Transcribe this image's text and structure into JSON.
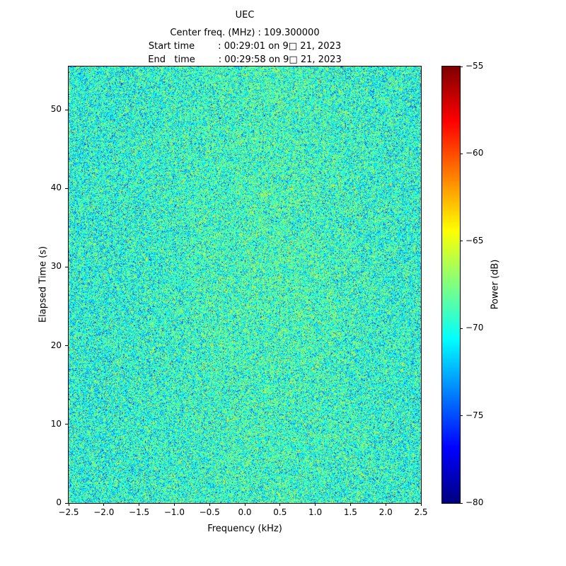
{
  "figure": {
    "title": "UEC",
    "subtitle_lines": [
      "Center freq. (MHz) : 109.300000",
      "Start time        : 00:29:01 on 9□ 21, 2023",
      "End   time        : 00:29:58 on 9□ 21, 2023"
    ]
  },
  "axes": {
    "xlabel": "Frequency (kHz)",
    "ylabel": "Elapsed Time (s)",
    "xtick_labels": [
      "−2.5",
      "−2.0",
      "−1.5",
      "−1.0",
      "−0.5",
      "0.0",
      "0.5",
      "1.0",
      "1.5",
      "2.0",
      "2.5"
    ],
    "ytick_labels": [
      "0",
      "10",
      "20",
      "30",
      "40",
      "50"
    ]
  },
  "colorbar": {
    "label": "Power (dB)",
    "tick_labels": [
      "−55",
      "−60",
      "−65",
      "−70",
      "−75",
      "−80"
    ]
  },
  "chart_data": {
    "type": "heatmap",
    "title": "UEC",
    "subtitle": {
      "center_freq_mhz": "109.300000",
      "start_time": "00:29:01 on 9□ 21, 2023",
      "end_time": "00:29:58 on 9□ 21, 2023"
    },
    "xlabel": "Frequency (kHz)",
    "ylabel": "Elapsed Time (s)",
    "x_range": [
      -2.5,
      2.5
    ],
    "y_range": [
      0,
      55.5
    ],
    "xticks": [
      -2.5,
      -2.0,
      -1.5,
      -1.0,
      -0.5,
      0.0,
      0.5,
      1.0,
      1.5,
      2.0,
      2.5
    ],
    "yticks": [
      0,
      10,
      20,
      30,
      40,
      50
    ],
    "colormap": "jet",
    "colorbar_label": "Power (dB)",
    "color_range_db": [
      -80,
      -55
    ],
    "colorbar_ticks": [
      -55,
      -60,
      -65,
      -70,
      -75,
      -80
    ],
    "grid": false,
    "legend_position": "none (colorbar right)",
    "data_description": "Spectrogram/waterfall of broadband random noise; no discrete carrier visible. Power speckle centered near -70 dB (std ~2.8 dB), slightly brighter toward mid frequencies, full span -2.5 to +2.5 kHz over ~55.5 s.",
    "noise_mean_db": -70,
    "noise_std_db": 2.8,
    "noise_seed": 42
  }
}
